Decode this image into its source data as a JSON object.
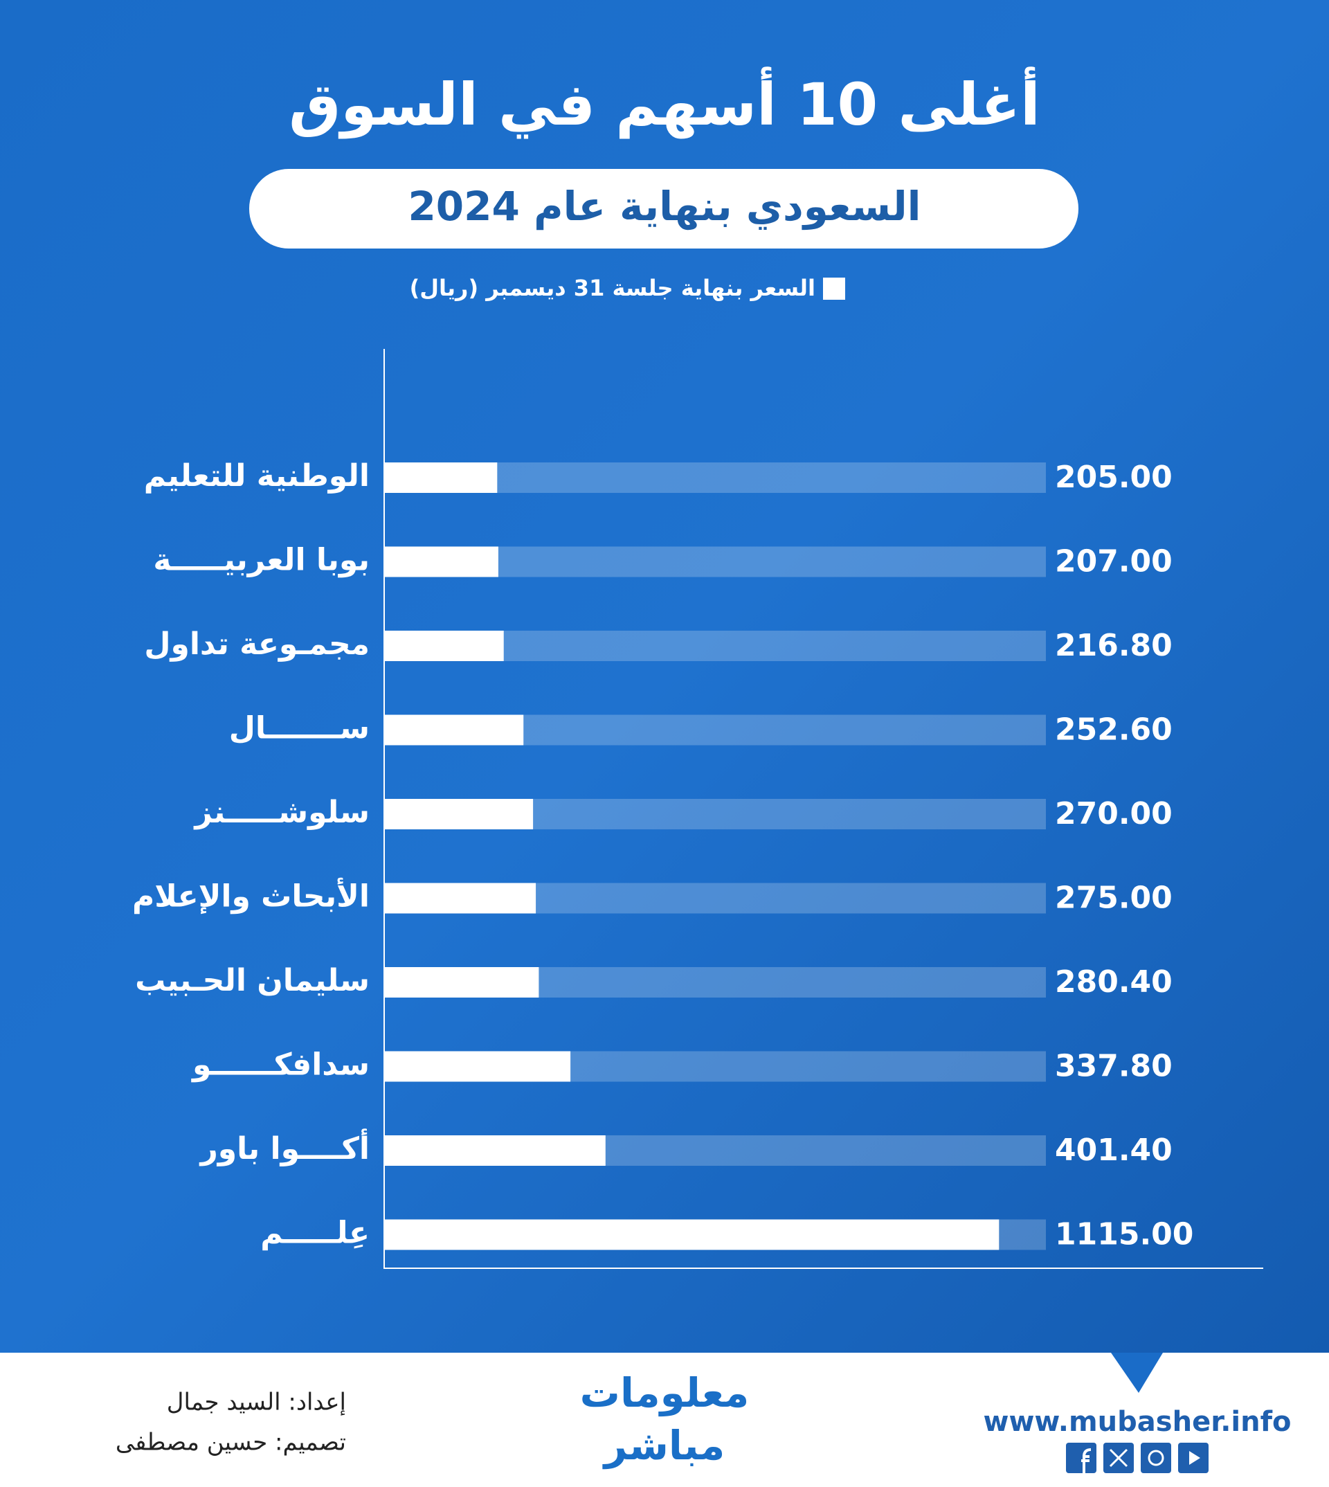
{
  "chart_data": {
    "type": "hbar",
    "title": "أغلى 10 أسهم في السوق",
    "subtitle": "السعودي بنهاية عام 2024",
    "categories": [
      "الوطنية للتعليم",
      "بوبا العربيـــــة",
      "مجمـوعة تداول",
      "ســـــــال",
      "سلوشـــــنز",
      "الأبحاث والإعلام",
      "سليمان الحـبيب",
      "سدافكــــــو",
      "أكــــوا باور",
      "عِلـــــم"
    ],
    "series": [
      {
        "name": "السعر بنهاية جلسة 31 ديسمبر (ريال)",
        "color": "#ffffff",
        "values": [
          205,
          207,
          216.8,
          252.6,
          270,
          275,
          280.4,
          337.8,
          401.4,
          1115
        ],
        "value_labels": [
          "205.00",
          "207.00",
          "216.80",
          "252.60",
          "270.00",
          "275.00",
          "280.40",
          "337.80",
          "401.40",
          "1115.00"
        ]
      }
    ],
    "xlim": [
      0,
      1200
    ],
    "legend": "top"
  },
  "footer": {
    "prepared_by": "إعداد: السيد جمال",
    "designed_by": "تصميم: حسين مصطفى",
    "logo_top": "معلومات",
    "logo_bottom": "مباشر",
    "website": "www.mubasher.info"
  }
}
